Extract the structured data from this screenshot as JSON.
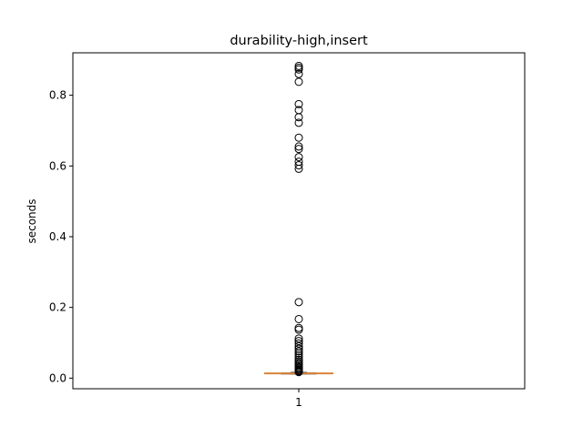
{
  "chart_data": {
    "type": "box",
    "title": "durability-high,insert",
    "xlabel": "",
    "ylabel": "seconds",
    "categories": [
      "1"
    ],
    "ylim": [
      -0.03,
      0.92
    ],
    "yticks": [
      0.0,
      0.2,
      0.4,
      0.6,
      0.8
    ],
    "ytick_labels": [
      "0.0",
      "0.2",
      "0.4",
      "0.6",
      "0.8"
    ],
    "grid": false,
    "box": {
      "category": "1",
      "whisker_low": 0.012,
      "q1": 0.013,
      "median": 0.0135,
      "q3": 0.0145,
      "whisker_high": 0.016
    },
    "fliers": [
      0.883,
      0.878,
      0.873,
      0.86,
      0.838,
      0.775,
      0.758,
      0.738,
      0.722,
      0.68,
      0.655,
      0.648,
      0.625,
      0.612,
      0.602,
      0.592,
      0.215,
      0.167,
      0.142,
      0.137,
      0.112,
      0.105,
      0.098,
      0.09,
      0.083,
      0.076,
      0.07,
      0.064,
      0.058,
      0.052,
      0.047,
      0.042,
      0.038,
      0.034,
      0.03,
      0.027,
      0.024,
      0.021,
      0.019,
      0.017
    ],
    "colors": {
      "median": "#d9823b",
      "box": "#000000",
      "flier": "#000000"
    }
  }
}
